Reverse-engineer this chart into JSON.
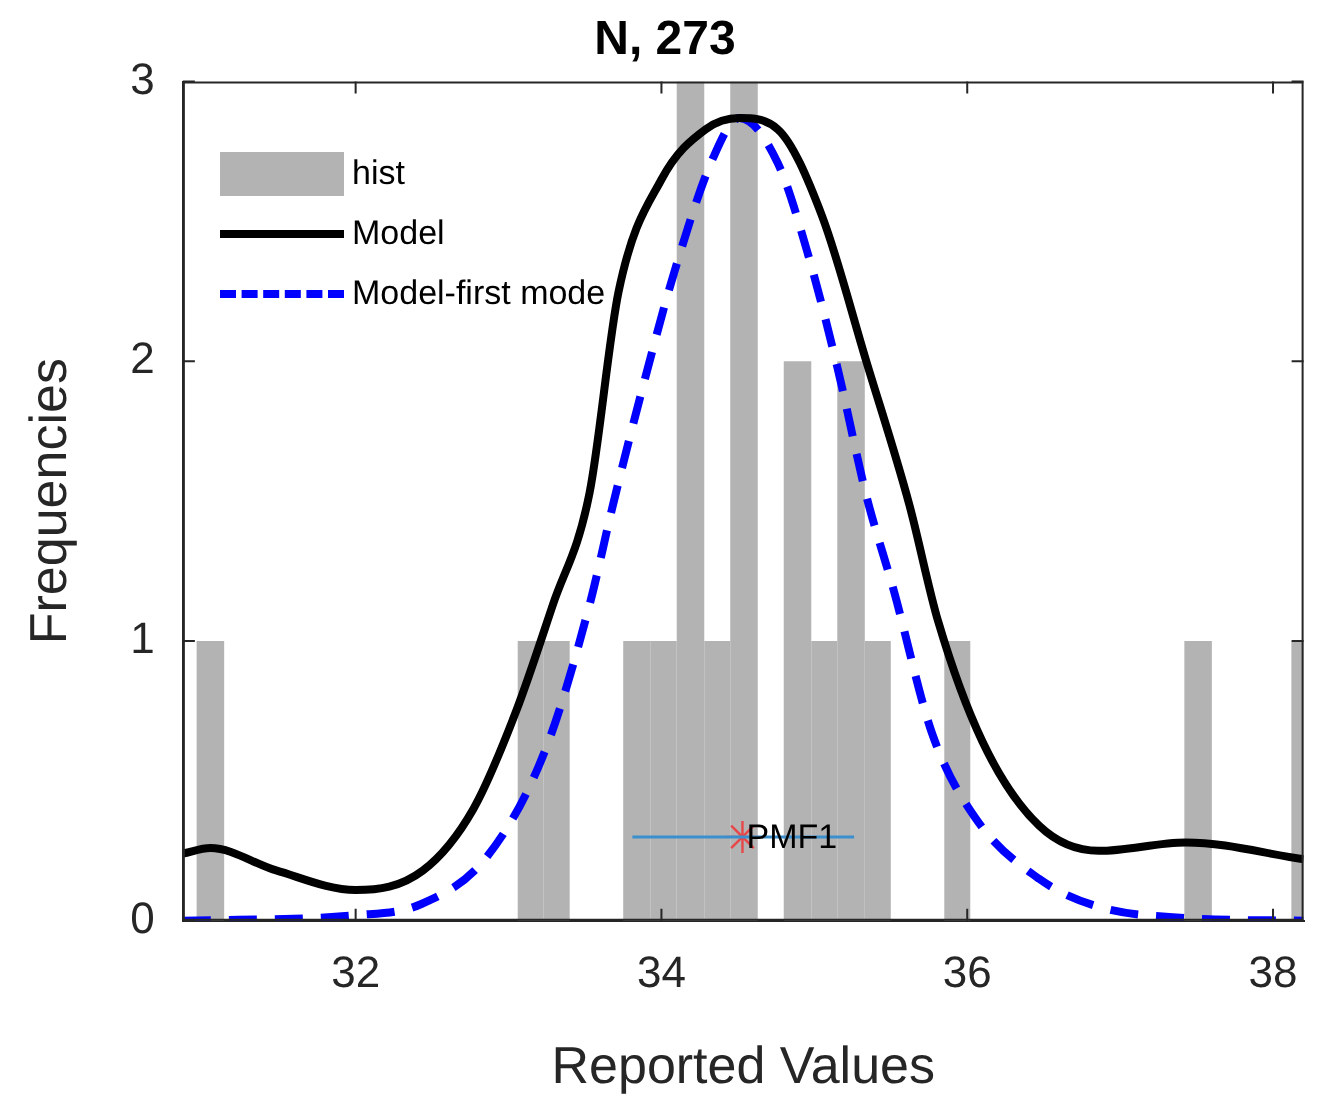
{
  "chart_data": {
    "type": "histogram",
    "title": "N, 273",
    "xlabel": "Reported Values",
    "ylabel": "Frequencies",
    "xlim": [
      30.87,
      38.2
    ],
    "xticks": [
      32,
      34,
      36,
      38
    ],
    "ylim": [
      0,
      3
    ],
    "yticks": [
      0,
      1,
      2,
      3
    ],
    "grid": false,
    "legend": "top left",
    "series": [
      {
        "name": "hist",
        "color": "#b3b3b3",
        "bins": [
          30.96,
          31.14,
          33.06,
          33.23,
          33.4,
          33.75,
          33.93,
          34.1,
          34.28,
          34.45,
          34.63,
          34.8,
          34.98,
          35.15,
          35.33,
          35.5,
          35.85,
          36.02,
          37.42,
          37.6,
          38.12,
          38.2
        ],
        "values": [
          1,
          0,
          1,
          1,
          0,
          1,
          1,
          3,
          1,
          3,
          0,
          2,
          1,
          2,
          1,
          0,
          1,
          0,
          1,
          0,
          1
        ]
      },
      {
        "name": "Model",
        "type": "line",
        "color": "#000000",
        "line_style": "solid",
        "x": [
          30.87,
          31.05,
          31.48,
          32.0,
          32.44,
          32.77,
          33.05,
          33.29,
          33.53,
          33.72,
          34.0,
          34.29,
          34.51,
          34.76,
          35.05,
          35.34,
          35.62,
          35.81,
          36.1,
          36.47,
          36.86,
          37.43,
          38.2
        ],
        "values": [
          0.24,
          0.26,
          0.18,
          0.11,
          0.18,
          0.4,
          0.75,
          1.13,
          1.53,
          2.25,
          2.65,
          2.83,
          2.87,
          2.83,
          2.52,
          2.0,
          1.49,
          1.07,
          0.64,
          0.34,
          0.25,
          0.28,
          0.22
        ]
      },
      {
        "name": "Model-first mode",
        "type": "line",
        "color": "#0000ff",
        "line_style": "dashed",
        "x": [
          30.87,
          32.0,
          32.43,
          32.86,
          33.24,
          33.53,
          33.68,
          33.86,
          34.09,
          34.34,
          34.51,
          34.76,
          34.96,
          35.15,
          35.34,
          35.52,
          35.77,
          36.05,
          36.47,
          36.86,
          37.43,
          38.2
        ],
        "values": [
          0,
          0.02,
          0.06,
          0.23,
          0.61,
          1.13,
          1.48,
          1.87,
          2.33,
          2.73,
          2.87,
          2.71,
          2.38,
          1.98,
          1.52,
          1.18,
          0.67,
          0.37,
          0.15,
          0.05,
          0.01,
          0
        ]
      },
      {
        "type": "line",
        "color": "#3b8fcc",
        "line_style": "solid",
        "x": [
          33.81,
          35.26
        ],
        "values": [
          0.3,
          0.3
        ]
      },
      {
        "type": "scatter",
        "color": "#e8474a",
        "marker": "cross",
        "x": [
          34.53
        ],
        "values": [
          0.3
        ]
      }
    ],
    "annotations": [
      {
        "text": "PMF1",
        "x": 34.53,
        "y": 0.3
      }
    ]
  }
}
